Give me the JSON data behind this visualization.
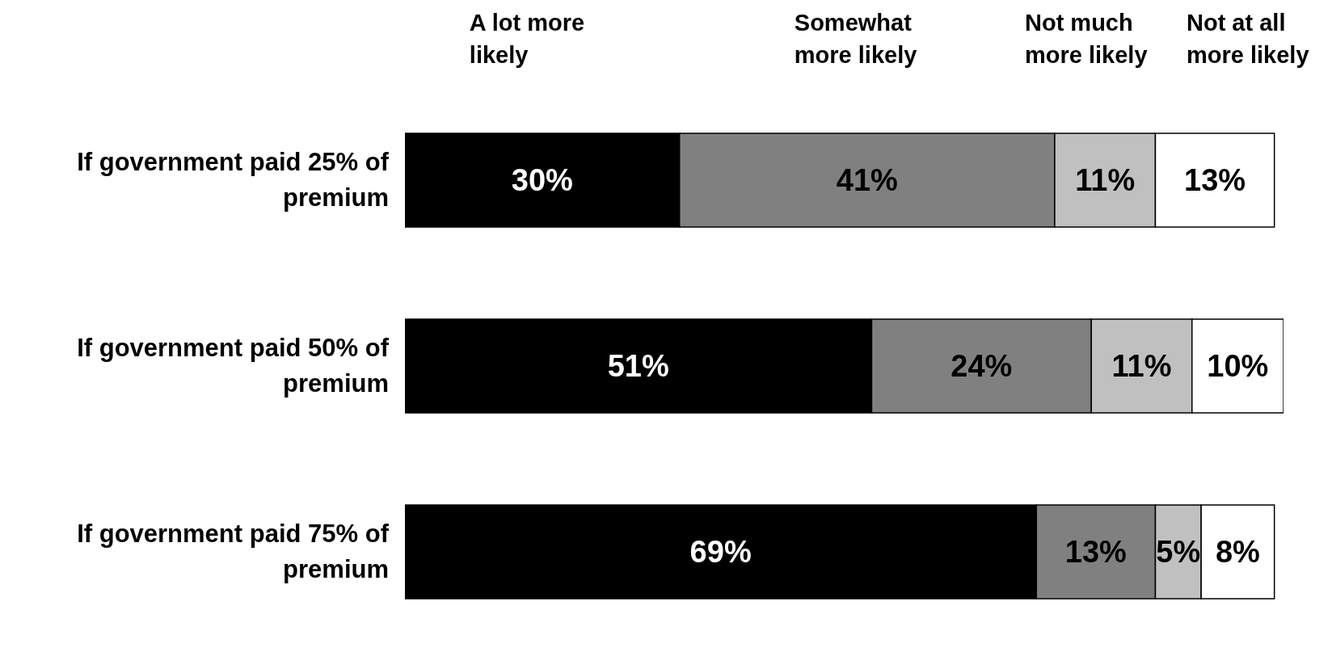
{
  "chart_data": {
    "type": "bar",
    "orientation": "horizontal",
    "stacked": true,
    "categories": [
      "If government paid 25% of premium",
      "If government paid 50% of premium",
      "If government paid 75% of premium"
    ],
    "series": [
      {
        "name": "A lot more likely",
        "color": "#000000",
        "values": [
          30,
          51,
          69
        ],
        "value_labels": [
          "30%",
          "51%",
          "69%"
        ]
      },
      {
        "name": "Somewhat more likely",
        "color": "#808080",
        "values": [
          41,
          24,
          13
        ],
        "value_labels": [
          "41%",
          "24%",
          "13%"
        ]
      },
      {
        "name": "Not much more likely",
        "color": "#c0c0c0",
        "values": [
          11,
          11,
          5
        ],
        "value_labels": [
          "11%",
          "11%",
          "5%"
        ]
      },
      {
        "name": "Not at all more likely",
        "color": "#ffffff",
        "values": [
          13,
          10,
          8
        ],
        "value_labels": [
          "13%",
          "10%",
          "8%"
        ]
      }
    ],
    "legend": "top",
    "tick_labels": "y"
  }
}
